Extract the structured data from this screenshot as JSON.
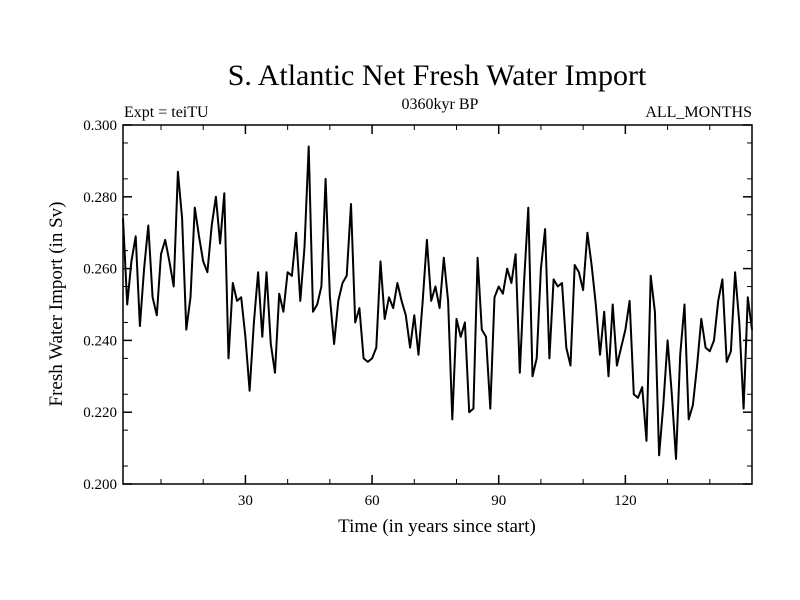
{
  "chart_data": {
    "type": "line",
    "title": "S. Atlantic Net Fresh Water Import",
    "subtitle_left": "Expt = teiTU",
    "subtitle_center": "0360kyr BP",
    "subtitle_right": "ALL_MONTHS",
    "xlabel": "Time (in years since start)",
    "ylabel": "Fresh Water Import (in Sv)",
    "xlim": [
      1,
      150
    ],
    "ylim": [
      0.2,
      0.3
    ],
    "xticks": [
      30,
      60,
      90,
      120
    ],
    "yticks": [
      0.2,
      0.22,
      0.24,
      0.26,
      0.28,
      0.3
    ],
    "ytick_labels": [
      "0.200",
      "0.220",
      "0.240",
      "0.260",
      "0.280",
      "0.300"
    ],
    "grid": false,
    "series": [
      {
        "name": "Fresh Water Import",
        "x": [
          1,
          2,
          3,
          4,
          5,
          6,
          7,
          8,
          9,
          10,
          11,
          12,
          13,
          14,
          15,
          16,
          17,
          18,
          19,
          20,
          21,
          22,
          23,
          24,
          25,
          26,
          27,
          28,
          29,
          30,
          31,
          32,
          33,
          34,
          35,
          36,
          37,
          38,
          39,
          40,
          41,
          42,
          43,
          44,
          45,
          46,
          47,
          48,
          49,
          50,
          51,
          52,
          53,
          54,
          55,
          56,
          57,
          58,
          59,
          60,
          61,
          62,
          63,
          64,
          65,
          66,
          67,
          68,
          69,
          70,
          71,
          72,
          73,
          74,
          75,
          76,
          77,
          78,
          79,
          80,
          81,
          82,
          83,
          84,
          85,
          86,
          87,
          88,
          89,
          90,
          91,
          92,
          93,
          94,
          95,
          96,
          97,
          98,
          99,
          100,
          101,
          102,
          103,
          104,
          105,
          106,
          107,
          108,
          109,
          110,
          111,
          112,
          113,
          114,
          115,
          116,
          117,
          118,
          119,
          120,
          121,
          122,
          123,
          124,
          125,
          126,
          127,
          128,
          129,
          130,
          131,
          132,
          133,
          134,
          135,
          136,
          137,
          138,
          139,
          140,
          141,
          142,
          143,
          144,
          145,
          146,
          147,
          148,
          149,
          150
        ],
        "values": [
          0.274,
          0.25,
          0.262,
          0.269,
          0.244,
          0.26,
          0.272,
          0.252,
          0.247,
          0.264,
          0.268,
          0.262,
          0.255,
          0.287,
          0.274,
          0.243,
          0.252,
          0.277,
          0.269,
          0.262,
          0.259,
          0.272,
          0.28,
          0.267,
          0.281,
          0.235,
          0.256,
          0.251,
          0.252,
          0.241,
          0.226,
          0.245,
          0.259,
          0.241,
          0.259,
          0.239,
          0.231,
          0.253,
          0.248,
          0.259,
          0.258,
          0.27,
          0.251,
          0.266,
          0.294,
          0.248,
          0.25,
          0.255,
          0.285,
          0.252,
          0.239,
          0.251,
          0.256,
          0.258,
          0.278,
          0.245,
          0.249,
          0.235,
          0.234,
          0.235,
          0.238,
          0.262,
          0.246,
          0.252,
          0.249,
          0.256,
          0.251,
          0.247,
          0.238,
          0.247,
          0.236,
          0.251,
          0.268,
          0.251,
          0.255,
          0.249,
          0.263,
          0.251,
          0.218,
          0.246,
          0.241,
          0.245,
          0.22,
          0.221,
          0.263,
          0.243,
          0.241,
          0.221,
          0.252,
          0.255,
          0.253,
          0.26,
          0.256,
          0.264,
          0.231,
          0.256,
          0.277,
          0.23,
          0.235,
          0.26,
          0.271,
          0.235,
          0.257,
          0.255,
          0.256,
          0.238,
          0.233,
          0.261,
          0.259,
          0.254,
          0.27,
          0.261,
          0.25,
          0.236,
          0.248,
          0.23,
          0.25,
          0.233,
          0.238,
          0.243,
          0.251,
          0.225,
          0.224,
          0.227,
          0.212,
          0.258,
          0.248,
          0.208,
          0.222,
          0.24,
          0.225,
          0.207,
          0.236,
          0.25,
          0.218,
          0.222,
          0.233,
          0.246,
          0.238,
          0.237,
          0.24,
          0.251,
          0.257,
          0.234,
          0.237,
          0.259,
          0.245,
          0.221,
          0.252,
          0.243
        ]
      }
    ]
  }
}
